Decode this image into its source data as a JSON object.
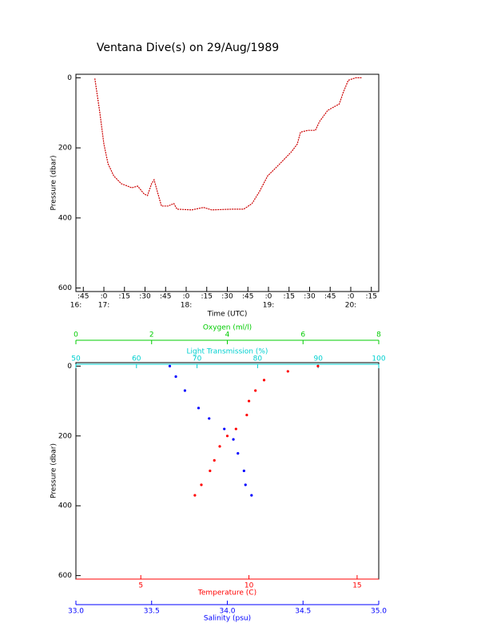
{
  "chart_data": [
    {
      "type": "line",
      "title": "Ventana Dive(s) on 29/Aug/1989",
      "xlabel": "Time (UTC)",
      "ylabel": "Pressure (dbar)",
      "xlim": [
        16.66,
        20.34
      ],
      "ylim": [
        610,
        -10
      ],
      "yticks": [
        0,
        200,
        400,
        600
      ],
      "xticks": [
        {
          "value": 16.75,
          "label": ":45"
        },
        {
          "value": 17,
          "label": ":0"
        },
        {
          "value": 17.25,
          "label": ":15"
        },
        {
          "value": 17.5,
          "label": ":30"
        },
        {
          "value": 17.75,
          "label": ":45"
        },
        {
          "value": 18,
          "label": ":0"
        },
        {
          "value": 18.25,
          "label": ":15"
        },
        {
          "value": 18.5,
          "label": ":30"
        },
        {
          "value": 18.75,
          "label": ":45"
        },
        {
          "value": 19,
          "label": ":0"
        },
        {
          "value": 19.25,
          "label": ":15"
        },
        {
          "value": 19.5,
          "label": ":30"
        },
        {
          "value": 19.75,
          "label": ":45"
        },
        {
          "value": 20,
          "label": ":0"
        },
        {
          "value": 20.25,
          "label": ":15"
        }
      ],
      "hour_labels": [
        {
          "value": 16.66,
          "label": "16:"
        },
        {
          "value": 17,
          "label": "17:"
        },
        {
          "value": 18,
          "label": "18:"
        },
        {
          "value": 19,
          "label": "19:"
        },
        {
          "value": 20,
          "label": "20:"
        }
      ],
      "color": "#cc0000",
      "x": [
        16.89,
        16.95,
        17.0,
        17.05,
        17.12,
        17.21,
        17.34,
        17.41,
        17.49,
        17.53,
        17.58,
        17.61,
        17.65,
        17.7,
        17.78,
        17.85,
        17.89,
        18.07,
        18.21,
        18.31,
        18.55,
        18.7,
        18.8,
        18.89,
        18.99,
        19.14,
        19.28,
        19.35,
        19.39,
        19.48,
        19.57,
        19.62,
        19.72,
        19.82,
        19.86,
        19.91,
        19.97,
        20.06,
        20.13
      ],
      "values": [
        2,
        98,
        189,
        245,
        280,
        302,
        314,
        309,
        332,
        336,
        302,
        291,
        325,
        366,
        366,
        359,
        375,
        377,
        370,
        377,
        375,
        375,
        359,
        325,
        280,
        245,
        211,
        189,
        155,
        150,
        150,
        125,
        93,
        80,
        75,
        41,
        7,
        0,
        0
      ]
    },
    {
      "type": "scatter",
      "ylabel": "Pressure (dbar)",
      "ylim": [
        610,
        -10
      ],
      "yticks": [
        0,
        200,
        400,
        600
      ],
      "axes": [
        {
          "label": "Light Transmission (%)",
          "color": "#00d0d0",
          "position": "top",
          "lim": [
            50,
            100
          ],
          "ticks": [
            50,
            60,
            70,
            80,
            90,
            100
          ]
        },
        {
          "label": "Oxygen (ml/l)",
          "color": "#00cc00",
          "position": "top",
          "lim": [
            0,
            8
          ],
          "ticks": [
            0,
            2,
            4,
            6,
            8
          ]
        },
        {
          "label": "Temperature (C)",
          "color": "#ff0000",
          "position": "bottom",
          "lim": [
            2,
            16
          ],
          "ticks": [
            5,
            10,
            15
          ],
          "points": {
            "x": [
              13.19,
              11.8,
              10.7,
              10.3,
              10.0,
              9.9,
              9.4,
              9.0,
              8.65,
              8.4,
              8.2,
              7.8,
              7.5
            ],
            "y": [
              0,
              15,
              40,
              70,
              100,
              140,
              180,
              200,
              230,
              270,
              300,
              340,
              370
            ]
          }
        },
        {
          "label": "Salinity (psu)",
          "color": "#0000ff",
          "position": "bottom",
          "lim": [
            33,
            35
          ],
          "ticks": [
            {
              "value": 33,
              "label": "33.0"
            },
            33.5,
            {
              "value": 34,
              "label": "34.0"
            },
            34.5,
            {
              "value": 35,
              "label": "35.0"
            }
          ],
          "points": {
            "x": [
              33.62,
              33.66,
              33.72,
              33.81,
              33.88,
              33.98,
              34.04,
              34.07,
              34.11,
              34.12,
              34.16
            ],
            "y": [
              0,
              30,
              70,
              120,
              150,
              180,
              210,
              250,
              300,
              340,
              370
            ]
          }
        }
      ]
    }
  ]
}
